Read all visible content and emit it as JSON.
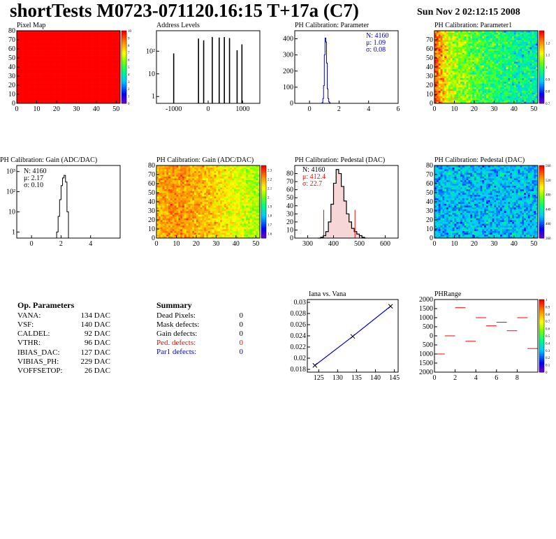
{
  "header": {
    "title": "shortTests M0723-071120.16:15 T+17a (C7)",
    "date": "Sun Nov  2 02:12:15 2008"
  },
  "colors": {
    "red": "#ff0000",
    "blue": "#0000cc",
    "black": "#000000"
  },
  "chart_data": [
    {
      "id": "pixel-map",
      "type": "heatmap",
      "title": "Pixel Map",
      "xlim": [
        0,
        52
      ],
      "ylim": [
        0,
        80
      ],
      "xticks": [
        "0",
        "10",
        "20",
        "30",
        "40",
        "50"
      ],
      "xtick_values": [
        0,
        10,
        20,
        30,
        40,
        50
      ],
      "yticks": [
        "0",
        "10",
        "20",
        "30",
        "40",
        "50",
        "60",
        "70",
        "80"
      ],
      "ytick_values": [
        0,
        10,
        20,
        30,
        40,
        50,
        60,
        70,
        80
      ],
      "zlim": [
        0,
        10
      ],
      "ztick_values": [
        0,
        1,
        2,
        3,
        4,
        5,
        6,
        7,
        8,
        9,
        10
      ],
      "ztick_labels": [
        "0",
        "1",
        "2",
        "3",
        "4",
        "5",
        "6",
        "7",
        "8",
        "9",
        "10"
      ],
      "value": 10
    },
    {
      "id": "address-levels",
      "type": "bar",
      "title": "Address Levels",
      "yscale": "log",
      "xlim": [
        -1500,
        1500
      ],
      "xticks": [
        "-1000",
        "0",
        "1000"
      ],
      "xtick_values": [
        -1000,
        0,
        1000
      ],
      "ylim": [
        0.5,
        800
      ],
      "yticks": [
        "1",
        "10",
        "10²"
      ],
      "ytick_values": [
        1,
        10,
        100
      ],
      "x": [
        -1000,
        -280,
        -130,
        120,
        320,
        470,
        620,
        840,
        980
      ],
      "values": [
        80,
        360,
        300,
        420,
        400,
        420,
        380,
        110,
        200
      ]
    },
    {
      "id": "ph-cal-param",
      "type": "line",
      "title": "PH Calibration: Parameter",
      "xlim": [
        -1,
        6
      ],
      "ylim": [
        0,
        450
      ],
      "xticks": [
        "0",
        "2",
        "4",
        "6"
      ],
      "xtick_values": [
        0,
        2,
        4,
        6
      ],
      "yticks": [
        "0",
        "100",
        "200",
        "300",
        "400"
      ],
      "ytick_values": [
        0,
        100,
        200,
        300,
        400
      ],
      "x": [
        0.8,
        0.85,
        0.9,
        0.95,
        1.0,
        1.05,
        1.1,
        1.15,
        1.2,
        1.25,
        1.3,
        1.35,
        1.4
      ],
      "values": [
        0,
        5,
        30,
        110,
        300,
        405,
        380,
        250,
        90,
        30,
        10,
        3,
        0
      ],
      "stats": [
        "N: 4160",
        "μ: 1.09",
        "σ: 0.08"
      ]
    },
    {
      "id": "ph-cal-param1",
      "type": "heatmap",
      "title": "PH Calibration: Parameter1",
      "xlim": [
        0,
        52
      ],
      "ylim": [
        0,
        80
      ],
      "xticks": [
        "0",
        "10",
        "20",
        "30",
        "40",
        "50"
      ],
      "xtick_values": [
        0,
        10,
        20,
        30,
        40,
        50
      ],
      "yticks": [
        "0",
        "10",
        "20",
        "30",
        "40",
        "50",
        "60",
        "70"
      ],
      "ytick_values": [
        0,
        10,
        20,
        30,
        40,
        50,
        60,
        70
      ],
      "zlim": [
        0.7,
        1.3
      ],
      "ztick_values": [
        0.7,
        0.8,
        0.9,
        1.0,
        1.1,
        1.2
      ],
      "ztick_labels": [
        "0.7",
        "0.8",
        "0.9",
        "1",
        "1.1",
        "1.2"
      ],
      "profile": [
        1.24,
        1.22,
        1.2,
        1.18,
        1.16,
        1.14,
        1.12,
        1.1,
        1.09,
        1.08,
        1.07,
        1.06,
        1.06,
        1.05,
        1.05,
        1.04,
        1.04,
        1.03,
        1.03,
        1.02,
        1.02,
        1.01,
        1.01,
        1.01,
        1.0,
        1.0,
        1.0,
        0.99,
        0.99,
        0.99,
        0.98,
        0.98,
        0.98,
        0.98,
        0.97,
        0.97,
        0.97,
        0.97,
        0.96,
        0.96,
        0.96,
        0.96,
        0.95,
        0.95,
        0.95,
        0.95,
        0.94,
        0.94,
        0.94,
        0.94,
        0.93,
        0.93
      ],
      "noise": 0.08
    },
    {
      "id": "ph-cal-gain-hist",
      "type": "line",
      "title": "PH Calibration: Gain (ADC/DAC)",
      "yscale": "log",
      "xlim": [
        -1,
        6
      ],
      "ylim": [
        0.5,
        2000
      ],
      "xticks": [
        "0",
        "2",
        "4"
      ],
      "xtick_values": [
        0,
        2,
        4
      ],
      "yticks": [
        "1",
        "10",
        "10²",
        "10³"
      ],
      "ytick_values": [
        1,
        10,
        100,
        1000
      ],
      "x": [
        1.6,
        1.7,
        1.8,
        1.9,
        2.0,
        2.1,
        2.2,
        2.3,
        2.4,
        2.5
      ],
      "values": [
        0,
        1,
        6,
        40,
        200,
        480,
        650,
        300,
        10,
        0
      ],
      "stats": [
        "N: 4160",
        "μ: 2.17",
        "σ: 0.10"
      ]
    },
    {
      "id": "ph-cal-gain-map",
      "type": "heatmap",
      "title": "PH Calibration: Gain (ADC/DAC)",
      "xlim": [
        0,
        52
      ],
      "ylim": [
        0,
        80
      ],
      "xticks": [
        "0",
        "10",
        "20",
        "30",
        "40",
        "50"
      ],
      "xtick_values": [
        0,
        10,
        20,
        30,
        40,
        50
      ],
      "yticks": [
        "0",
        "10",
        "20",
        "30",
        "40",
        "50",
        "60",
        "70",
        "80"
      ],
      "ytick_values": [
        0,
        10,
        20,
        30,
        40,
        50,
        60,
        70,
        80
      ],
      "zlim": [
        1.55,
        2.35
      ],
      "ztick_values": [
        1.6,
        1.7,
        1.8,
        1.9,
        2.0,
        2.1,
        2.2,
        2.3
      ],
      "ztick_labels": [
        "1.6",
        "1.7",
        "1.8",
        "1.9",
        "2",
        "2.1",
        "2.2",
        "2.3"
      ],
      "profile": [
        2.18,
        2.19,
        2.2,
        2.2,
        2.21,
        2.21,
        2.22,
        2.22,
        2.22,
        2.22,
        2.22,
        2.22,
        2.22,
        2.22,
        2.21,
        2.21,
        2.21,
        2.2,
        2.2,
        2.2,
        2.19,
        2.19,
        2.19,
        2.18,
        2.18,
        2.17,
        2.17,
        2.16,
        2.16,
        2.15,
        2.15,
        2.14,
        2.14,
        2.13,
        2.13,
        2.12,
        2.12,
        2.11,
        2.11,
        2.1,
        2.1,
        2.09,
        2.09,
        2.08,
        2.08,
        2.07,
        2.07,
        2.06,
        2.06,
        2.05,
        2.05,
        2.04
      ],
      "noise": 0.07
    },
    {
      "id": "ph-cal-pedestal-hist",
      "type": "line",
      "title": "PH Calibration: Pedestal (DAC)",
      "xlim": [
        250,
        650
      ],
      "ylim": [
        0,
        90
      ],
      "xticks": [
        "300",
        "400",
        "500",
        "600"
      ],
      "xtick_values": [
        300,
        400,
        500,
        600
      ],
      "yticks": [
        "0",
        "10",
        "20",
        "30",
        "40",
        "50",
        "60",
        "70",
        "80"
      ],
      "ytick_values": [
        0,
        10,
        20,
        30,
        40,
        50,
        60,
        70,
        80
      ],
      "x": [
        340,
        350,
        360,
        370,
        380,
        390,
        400,
        410,
        420,
        430,
        440,
        450,
        460,
        470,
        480,
        490,
        500,
        510,
        520
      ],
      "values": [
        0,
        1,
        3,
        8,
        20,
        42,
        68,
        85,
        80,
        64,
        46,
        30,
        20,
        12,
        8,
        5,
        3,
        1,
        0
      ],
      "cut_lines": [
        362,
        483
      ],
      "stats": [
        "N: 4160",
        "μ: 412.4",
        "σ: 22.7"
      ]
    },
    {
      "id": "ph-cal-pedestal-map",
      "type": "heatmap",
      "title": "PH Calibration: Pedestal (DAC)",
      "xlim": [
        0,
        52
      ],
      "ylim": [
        0,
        80
      ],
      "xticks": [
        "0",
        "10",
        "20",
        "30",
        "40",
        "50"
      ],
      "xtick_values": [
        0,
        10,
        20,
        30,
        40,
        50
      ],
      "yticks": [
        "0",
        "10",
        "20",
        "30",
        "40",
        "50",
        "60",
        "70",
        "80"
      ],
      "ytick_values": [
        0,
        10,
        20,
        30,
        40,
        50,
        60,
        70,
        80
      ],
      "zlim": [
        360,
        560
      ],
      "ztick_values": [
        360,
        400,
        440,
        480,
        520,
        560
      ],
      "ztick_labels": [
        "360",
        "400",
        "440",
        "480",
        "520",
        "560"
      ],
      "profile": [
        420,
        420,
        420,
        420,
        420,
        420,
        420,
        420,
        420,
        420,
        420,
        420,
        420,
        420,
        420,
        420,
        420,
        420,
        420,
        420,
        420,
        420,
        420,
        420,
        420,
        420,
        420,
        420,
        420,
        420,
        420,
        420,
        420,
        420,
        420,
        420,
        420,
        420,
        420,
        420,
        420,
        420,
        420,
        420,
        420,
        420,
        420,
        420,
        420,
        420,
        420,
        420
      ],
      "noise": 22
    },
    {
      "id": "iana-vs-vana",
      "type": "line",
      "title": "Iana vs. Vana",
      "xlim": [
        122,
        146
      ],
      "ylim": [
        0.0175,
        0.0305
      ],
      "xticks": [
        "125",
        "130",
        "135",
        "140",
        "145"
      ],
      "xtick_values": [
        125,
        130,
        135,
        140,
        145
      ],
      "yticks": [
        "0.018",
        "0.02",
        "0.022",
        "0.024",
        "0.026",
        "0.028",
        "0.03"
      ],
      "ytick_values": [
        0.018,
        0.02,
        0.022,
        0.024,
        0.026,
        0.028,
        0.03
      ],
      "x": [
        124,
        134,
        144
      ],
      "values": [
        0.0187,
        0.0239,
        0.0293
      ]
    },
    {
      "id": "ph-range",
      "type": "heatmap",
      "title": "PHRange",
      "xlim": [
        0,
        10
      ],
      "ylim": [
        -2000,
        2000
      ],
      "xticks": [
        "0",
        "2",
        "4",
        "6",
        "8"
      ],
      "xtick_values": [
        0,
        2,
        4,
        6,
        8
      ],
      "yticks": [
        "2000",
        "1500",
        "1000",
        "500",
        "0",
        "500",
        "1000",
        "1500",
        "2000"
      ],
      "ytick_values": [
        -2000,
        -1500,
        -1000,
        -500,
        0,
        500,
        1000,
        1500,
        2000
      ],
      "zlim": [
        0,
        1
      ],
      "ztick_values": [
        0,
        0.1,
        0.2,
        0.3,
        0.4,
        0.5,
        0.6,
        0.7,
        0.8,
        0.9,
        1
      ],
      "ztick_labels": [
        "0",
        "0.1",
        "0.2",
        "0.3",
        "0.4",
        "0.5",
        "0.6",
        "0.7",
        "0.8",
        "0.9",
        "1"
      ],
      "segments_x": [
        0,
        1,
        2,
        3,
        4,
        5,
        6,
        7,
        8,
        9
      ],
      "values": [
        -1000,
        0,
        1550,
        -300,
        1000,
        550,
        750,
        280,
        1000,
        -700
      ]
    }
  ],
  "op_parameters": {
    "heading": "Op. Parameters",
    "rows": [
      {
        "name": "VANA:",
        "value": "134 DAC"
      },
      {
        "name": "VSF:",
        "value": "140 DAC"
      },
      {
        "name": "CALDEL:",
        "value": "92 DAC"
      },
      {
        "name": "VTHR:",
        "value": "96 DAC"
      },
      {
        "name": "IBIAS_DAC:",
        "value": "127 DAC"
      },
      {
        "name": "VIBIAS_PH:",
        "value": "229 DAC"
      },
      {
        "name": "VOFFSETOP:",
        "value": "26 DAC"
      }
    ]
  },
  "summary": {
    "heading": "Summary",
    "rows": [
      {
        "name": "Dead Pixels:",
        "value": "0",
        "color": "#000000"
      },
      {
        "name": "Mask defects:",
        "value": "0",
        "color": "#000000"
      },
      {
        "name": "Gain defects:",
        "value": "0",
        "color": "#000000"
      },
      {
        "name": "Ped. defects:",
        "value": "0",
        "color": "#ff0000"
      },
      {
        "name": "Par1 defects:",
        "value": "0",
        "color": "#0000cc"
      }
    ]
  }
}
